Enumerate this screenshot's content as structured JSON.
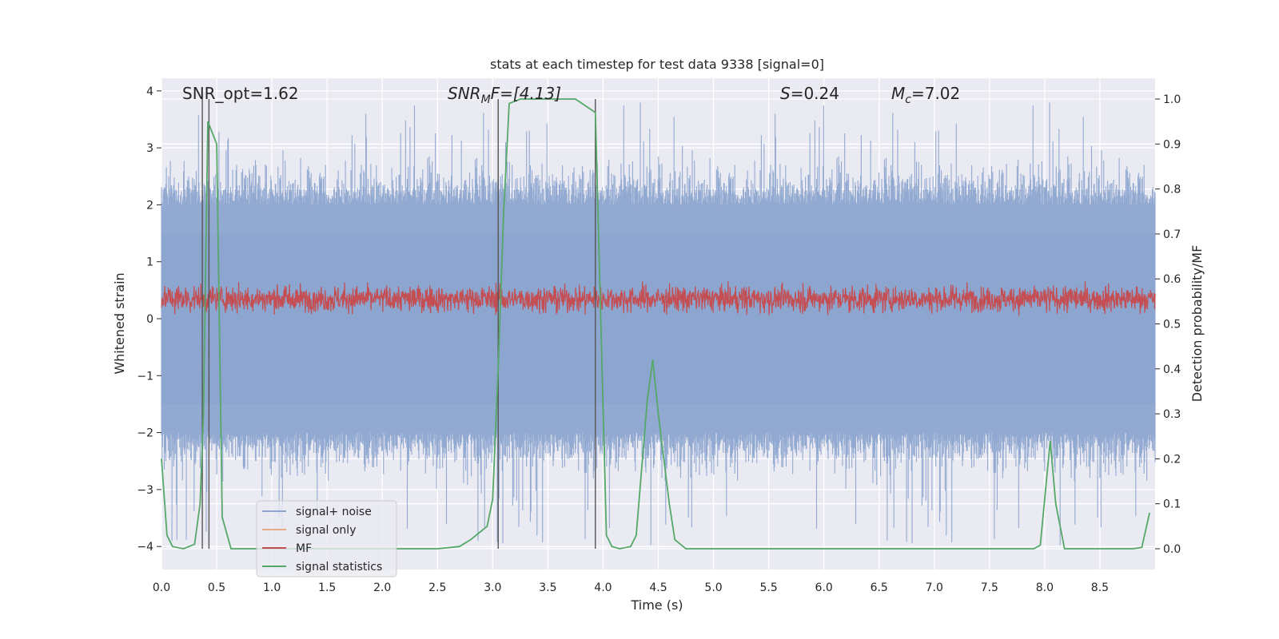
{
  "chart_data": {
    "type": "line",
    "title": "stats at each timestep for test data 9338 [signal=0]",
    "xlabel": "Time (s)",
    "ylabel": "Whitened strain",
    "ylabel_right": "Detection probability/MF",
    "xlim": [
      0.0,
      9.0
    ],
    "ylim": [
      -4.4,
      4.2
    ],
    "ylim_right": [
      -0.05,
      1.05
    ],
    "xticks": [
      "0.0",
      "0.5",
      "1.0",
      "1.5",
      "2.0",
      "2.5",
      "3.0",
      "3.5",
      "4.0",
      "4.5",
      "5.0",
      "5.5",
      "6.0",
      "6.5",
      "7.0",
      "7.5",
      "8.0",
      "8.5"
    ],
    "yticks": [
      "4",
      "3",
      "2",
      "1",
      "0",
      "−1",
      "−2",
      "−3",
      "−4"
    ],
    "yticks_right": [
      "1.0",
      "0.9",
      "0.8",
      "0.7",
      "0.6",
      "0.5",
      "0.4",
      "0.3",
      "0.2",
      "0.1",
      "0.0"
    ],
    "grid": true,
    "legend_placement": "lower-left",
    "annotations": {
      "snr_opt": "SNR_opt=1.62",
      "snr_mf_base": "SNR",
      "snr_mf_sub": "M",
      "snr_mf_rest": "F=[4.13]",
      "s_var": "S",
      "s_val": "=0.24",
      "mc_base": "M",
      "mc_sub": "c",
      "mc_val": "=7.02"
    },
    "series": [
      {
        "name": "signal+ noise",
        "color": "#8da5cf",
        "axis": "left",
        "envelope": {
          "upper_typical": 2.0,
          "upper_peak": 3.8,
          "lower_typical": -2.0,
          "lower_peak": -4.0
        }
      },
      {
        "name": "signal only",
        "color": "#e8a98a",
        "axis": "left",
        "values": []
      },
      {
        "name": "MF",
        "color": "#c44e52",
        "axis": "left",
        "envelope": {
          "min": 0.05,
          "max": 0.95,
          "center": 0.35
        }
      },
      {
        "name": "signal statistics",
        "color": "#55a868",
        "axis": "right",
        "x": [
          0.0,
          0.05,
          0.1,
          0.2,
          0.3,
          0.35,
          0.38,
          0.42,
          0.5,
          0.55,
          0.63,
          0.7,
          1.0,
          1.5,
          2.0,
          2.5,
          2.7,
          2.8,
          2.9,
          2.95,
          3.0,
          3.05,
          3.1,
          3.15,
          3.25,
          3.5,
          3.75,
          3.93,
          4.03,
          4.08,
          4.15,
          4.25,
          4.3,
          4.4,
          4.45,
          4.5,
          4.6,
          4.65,
          4.75,
          4.85,
          5.0,
          6.0,
          7.0,
          7.5,
          7.9,
          7.96,
          8.05,
          8.1,
          8.18,
          8.25,
          8.5,
          8.8,
          8.88,
          8.95
        ],
        "y": [
          0.2,
          0.03,
          0.005,
          0.0,
          0.01,
          0.1,
          0.3,
          0.95,
          0.9,
          0.07,
          0.0,
          0.0,
          0.0,
          0.0,
          0.0,
          0.0,
          0.005,
          0.02,
          0.04,
          0.05,
          0.11,
          0.4,
          0.75,
          0.99,
          1.0,
          1.0,
          1.0,
          0.97,
          0.03,
          0.005,
          0.0,
          0.005,
          0.03,
          0.33,
          0.42,
          0.3,
          0.1,
          0.02,
          0.0,
          0.0,
          0.0,
          0.0,
          0.0,
          0.0,
          0.0,
          0.008,
          0.24,
          0.1,
          0.0,
          0.0,
          0.0,
          0.0,
          0.003,
          0.08
        ]
      }
    ],
    "vlines": [
      0.37,
      0.43,
      3.05,
      3.93
    ]
  }
}
